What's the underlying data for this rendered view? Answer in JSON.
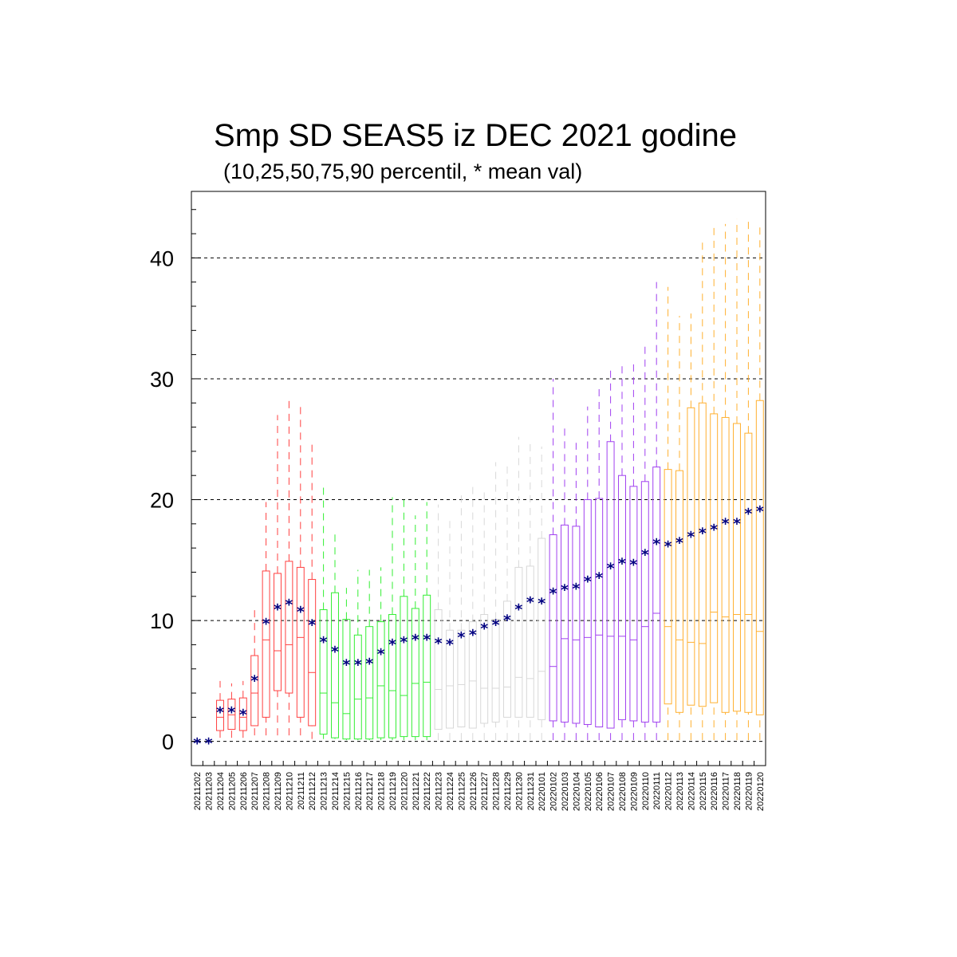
{
  "chart_data": {
    "type": "boxplot",
    "title": "Smp SD SEAS5 iz DEC 2021 godine",
    "subtitle": "(10,25,50,75,90 percentil, * mean val)",
    "xlabel": "",
    "ylabel": "",
    "ylim": [
      -2,
      45.5
    ],
    "yticks": [
      0,
      10,
      20,
      30,
      40
    ],
    "grid": "horizontal dashed at major ticks",
    "mean_marker": "*",
    "mean_color": "#000080",
    "groups": [
      {
        "name": "early-red",
        "color": "#ff4040",
        "start": 0,
        "end": 10
      },
      {
        "name": "green",
        "color": "#33ee33",
        "start": 11,
        "end": 20
      },
      {
        "name": "grey",
        "color": "#d8d8d8",
        "start": 21,
        "end": 30
      },
      {
        "name": "purple",
        "color": "#a040f0",
        "start": 31,
        "end": 40
      },
      {
        "name": "orange",
        "color": "#ffb030",
        "start": 41,
        "end": 49
      }
    ],
    "categories": [
      "20211202",
      "20211203",
      "20211204",
      "20211205",
      "20211206",
      "20211207",
      "20211208",
      "20211209",
      "20211210",
      "20211211",
      "20211212",
      "20211213",
      "20211214",
      "20211215",
      "20211216",
      "20211217",
      "20211218",
      "20211219",
      "20211220",
      "20211221",
      "20211222",
      "20211223",
      "20211224",
      "20211225",
      "20211226",
      "20211227",
      "20211228",
      "20211229",
      "20211230",
      "20211231",
      "20220101",
      "20220102",
      "20220103",
      "20220104",
      "20220105",
      "20220106",
      "20220107",
      "20220108",
      "20220109",
      "20220110",
      "20220111",
      "20220112",
      "20220113",
      "20220114",
      "20220115",
      "20220116",
      "20220117",
      "20220118",
      "20220119",
      "20220120"
    ],
    "p10": [
      0,
      0,
      0.3,
      0.3,
      0.3,
      0.5,
      0.5,
      0.5,
      0.5,
      0.5,
      0.2,
      0.2,
      0.2,
      0.1,
      0.1,
      0.1,
      0.1,
      0.1,
      0.1,
      0.1,
      0.1,
      0.1,
      0.1,
      0.1,
      0.1,
      0.1,
      0.1,
      0.1,
      0.1,
      0.1,
      0.1,
      0.1,
      0.1,
      0.1,
      0.1,
      0.1,
      0.1,
      0.1,
      0.1,
      0.1,
      0.1,
      0.1,
      0.1,
      0.1,
      0.1,
      0.1,
      0.1,
      0.1,
      0.1,
      0.1
    ],
    "p25": [
      0,
      0,
      0.9,
      1.0,
      0.9,
      1.3,
      2.0,
      4.2,
      4.0,
      2.0,
      1.3,
      0.6,
      0.3,
      0.2,
      0.2,
      0.2,
      0.3,
      0.3,
      0.4,
      0.4,
      0.4,
      1.0,
      1.1,
      1.2,
      1.1,
      1.5,
      1.6,
      2.0,
      2.0,
      2.0,
      1.8,
      1.7,
      1.6,
      1.5,
      1.4,
      1.2,
      1.1,
      1.8,
      1.7,
      1.6,
      1.6,
      3.1,
      2.4,
      3.0,
      2.9,
      3.2,
      2.4,
      2.5,
      2.4,
      2.2
    ],
    "p50": [
      0,
      0,
      2.0,
      2.2,
      2.0,
      4.0,
      8.4,
      7.5,
      8.0,
      8.6,
      5.7,
      4.0,
      3.2,
      2.3,
      3.5,
      3.6,
      4.6,
      4.2,
      3.8,
      4.8,
      4.9,
      4.3,
      4.6,
      4.7,
      5.0,
      4.4,
      4.4,
      4.5,
      5.3,
      5.2,
      5.8,
      6.2,
      8.5,
      8.4,
      8.6,
      8.8,
      8.7,
      8.7,
      8.4,
      9.5,
      10.6,
      9.5,
      8.4,
      8.2,
      8.1,
      10.7,
      10.3,
      10.5,
      10.5,
      9.1
    ],
    "p75": [
      0,
      0,
      3.4,
      3.5,
      3.6,
      7.1,
      14.1,
      13.9,
      14.9,
      14.4,
      13.4,
      10.9,
      12.3,
      10.1,
      8.8,
      9.5,
      9.9,
      10.5,
      12.0,
      11.0,
      12.1,
      10.9,
      9.2,
      9.2,
      9.9,
      10.5,
      10.1,
      11.6,
      14.4,
      14.5,
      16.8,
      17.1,
      17.9,
      17.8,
      20.0,
      20.1,
      24.8,
      22.0,
      21.1,
      21.5,
      22.7,
      22.5,
      22.4,
      27.6,
      28.0,
      27.1,
      26.8,
      26.3,
      25.5,
      28.2
    ],
    "p90": [
      0,
      0,
      5.0,
      4.8,
      5.0,
      11.0,
      19.8,
      27.0,
      28.3,
      28.1,
      24.6,
      21.2,
      17.2,
      12.7,
      14.2,
      14.2,
      14.4,
      20.2,
      20.0,
      18.7,
      19.8,
      19.6,
      18.6,
      20.6,
      21.2,
      21.0,
      23.1,
      23.2,
      25.2,
      24.6,
      24.4,
      30.0,
      25.9,
      24.7,
      27.7,
      29.4,
      30.7,
      31.4,
      31.2,
      33.0,
      38.0,
      37.6,
      35.2,
      35.4,
      41.6,
      42.6,
      42.8,
      43.2,
      43.0,
      42.7
    ],
    "mean": [
      0,
      0,
      2.6,
      2.6,
      2.4,
      5.2,
      9.9,
      11.1,
      11.5,
      10.9,
      9.8,
      8.4,
      7.6,
      6.5,
      6.5,
      6.6,
      7.4,
      8.2,
      8.4,
      8.6,
      8.6,
      8.3,
      8.2,
      8.8,
      9.0,
      9.5,
      9.8,
      10.2,
      11.1,
      11.7,
      11.6,
      12.4,
      12.7,
      12.8,
      13.4,
      13.7,
      14.5,
      14.9,
      14.8,
      15.6,
      16.5,
      16.3,
      16.6,
      17.1,
      17.4,
      17.7,
      18.2,
      18.2,
      19.0,
      19.2
    ]
  }
}
